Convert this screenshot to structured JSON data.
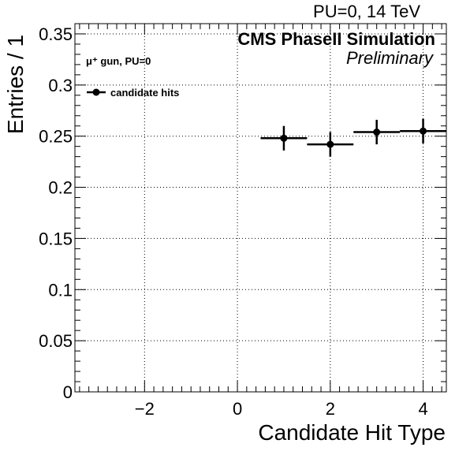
{
  "header": {
    "top_right": "PU=0, 14 TeV",
    "cms_label": "CMS PhaseII Simulation",
    "preliminary": "Preliminary",
    "gun_label": "μ⁺ gun, PU=0"
  },
  "chart_data": {
    "type": "scatter",
    "title": "",
    "xlabel": "Candidate Hit Type",
    "ylabel": "Entries / 1",
    "xlim": [
      -3.5,
      4.5
    ],
    "ylim": [
      0,
      0.36
    ],
    "grid": true,
    "legend_position": "top-left",
    "x_ticks": [
      -2,
      0,
      2,
      4
    ],
    "x_tick_labels": [
      "−2",
      "0",
      "2",
      "4"
    ],
    "y_ticks": [
      0,
      0.05,
      0.1,
      0.15,
      0.2,
      0.25,
      0.3,
      0.35
    ],
    "y_tick_labels": [
      "0",
      "0.05",
      "0.1",
      "0.15",
      "0.2",
      "0.25",
      "0.3",
      "0.35"
    ],
    "series": [
      {
        "name": "candidate hits",
        "x": [
          1,
          2,
          3,
          4
        ],
        "y": [
          0.248,
          0.242,
          0.254,
          0.255
        ],
        "x_err": [
          0.5,
          0.5,
          0.5,
          0.5
        ],
        "y_err": [
          0.012,
          0.012,
          0.012,
          0.012
        ],
        "color": "#000000"
      }
    ]
  }
}
